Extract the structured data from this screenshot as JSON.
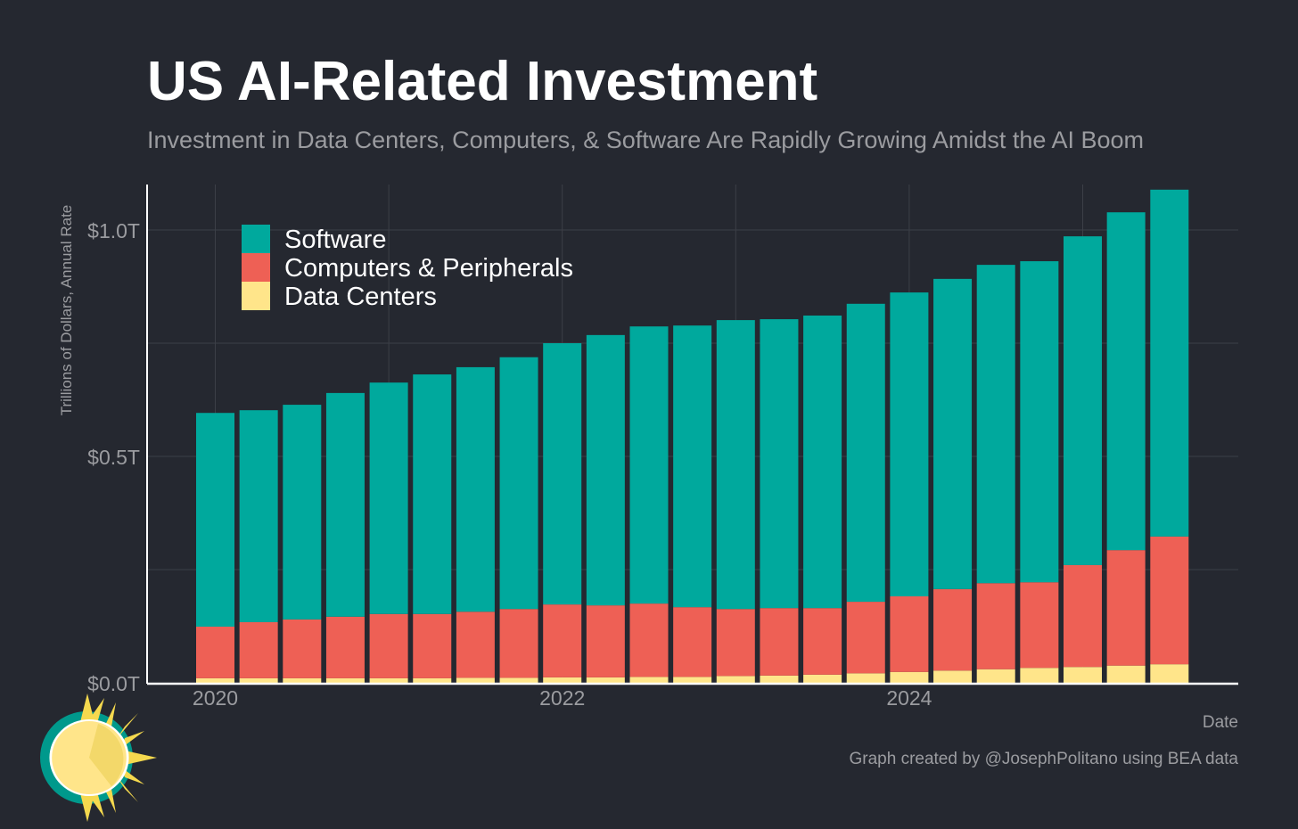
{
  "chart_data": {
    "type": "bar",
    "stacked": true,
    "title": "US AI-Related Investment",
    "subtitle": "Investment in Data Centers, Computers, & Software Are Rapidly Growing Amidst the AI Boom",
    "xlabel": "Date",
    "ylabel": "Trillions of Dollars, Annual Rate",
    "ylim": [
      0,
      1.1
    ],
    "yticks": [
      {
        "value": 0,
        "label": "$0.0T"
      },
      {
        "value": 0.5,
        "label": "$0.5T"
      },
      {
        "value": 1.0,
        "label": "$1.0T"
      }
    ],
    "xticks": [
      {
        "value": 2020,
        "label": "2020"
      },
      {
        "value": 2022,
        "label": "2022"
      },
      {
        "value": 2024,
        "label": "2024"
      }
    ],
    "legend_position": "top-left",
    "grid": true,
    "x": [
      "2020Q1",
      "2020Q2",
      "2020Q3",
      "2020Q4",
      "2021Q1",
      "2021Q2",
      "2021Q3",
      "2021Q4",
      "2022Q1",
      "2022Q2",
      "2022Q3",
      "2022Q4",
      "2023Q1",
      "2023Q2",
      "2023Q3",
      "2023Q4",
      "2024Q1",
      "2024Q2",
      "2024Q3",
      "2024Q4",
      "2025Q1",
      "2025Q2",
      "2025Q3"
    ],
    "series": [
      {
        "name": "Data Centers",
        "color": "#FFE58A",
        "values": [
          0.01,
          0.01,
          0.01,
          0.01,
          0.01,
          0.01,
          0.011,
          0.011,
          0.012,
          0.012,
          0.013,
          0.013,
          0.015,
          0.016,
          0.018,
          0.021,
          0.024,
          0.027,
          0.03,
          0.033,
          0.035,
          0.038,
          0.041
        ]
      },
      {
        "name": "Computers & Peripherals",
        "color": "#EE6055",
        "values": [
          0.114,
          0.124,
          0.13,
          0.136,
          0.142,
          0.142,
          0.146,
          0.152,
          0.161,
          0.159,
          0.162,
          0.154,
          0.148,
          0.149,
          0.147,
          0.158,
          0.167,
          0.18,
          0.19,
          0.189,
          0.225,
          0.255,
          0.282
        ]
      },
      {
        "name": "Software",
        "color": "#00A99D",
        "values": [
          0.472,
          0.468,
          0.474,
          0.494,
          0.511,
          0.529,
          0.54,
          0.556,
          0.577,
          0.597,
          0.612,
          0.622,
          0.638,
          0.638,
          0.646,
          0.658,
          0.671,
          0.685,
          0.703,
          0.709,
          0.726,
          0.746,
          0.766
        ]
      }
    ],
    "legend_order": [
      "Software",
      "Computers & Peripherals",
      "Data Centers"
    ]
  },
  "credit": "Graph created by @JosephPolitano using BEA data"
}
